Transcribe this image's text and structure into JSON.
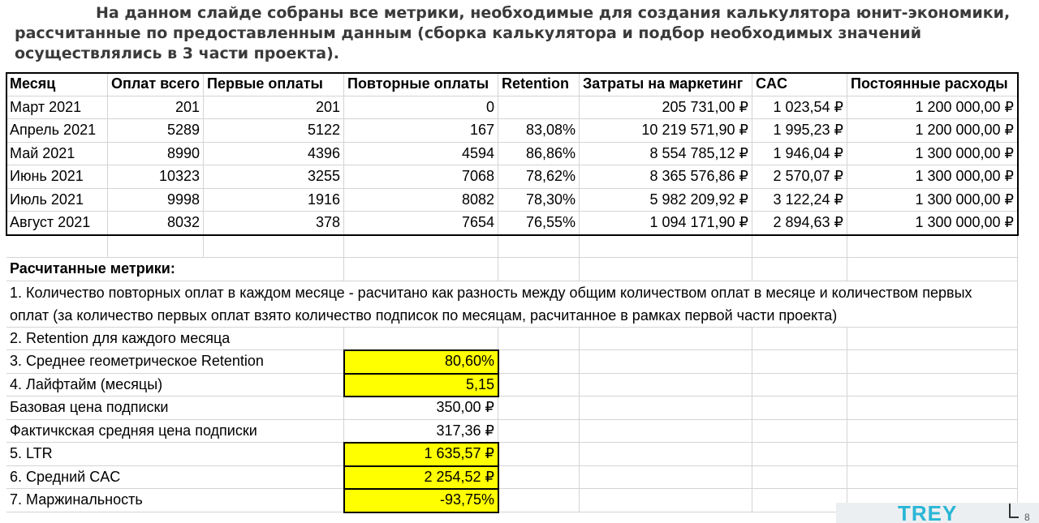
{
  "title": {
    "line1": "На данном слайде собраны все метрики, необходимые для создания калькулятора юнит-экономики,",
    "line2": "рассчитанные по предоставленным данным (сборка калькулятора и подбор необходимых значений",
    "line3": "осуществлялись в 3 части проекта)."
  },
  "table": {
    "headers": [
      "Месяц",
      "Оплат всего",
      "Первые оплаты",
      "Повторные оплаты",
      "Retention",
      "Затраты на маркетинг",
      "CAC",
      "Постоянные расходы"
    ],
    "rows": [
      [
        "Март 2021",
        "201",
        "201",
        "0",
        "",
        "205 731,00 ₽",
        "1 023,54 ₽",
        "1 200 000,00 ₽"
      ],
      [
        "Апрель 2021",
        "5289",
        "5122",
        "167",
        "83,08%",
        "10 219 571,90 ₽",
        "1 995,23 ₽",
        "1 200 000,00 ₽"
      ],
      [
        "Май 2021",
        "8990",
        "4396",
        "4594",
        "86,86%",
        "8 554 785,12 ₽",
        "1 946,04 ₽",
        "1 300 000,00 ₽"
      ],
      [
        "Июнь 2021",
        "10323",
        "3255",
        "7068",
        "78,62%",
        "8 365 576,86 ₽",
        "2 570,07 ₽",
        "1 300 000,00 ₽"
      ],
      [
        "Июль 2021",
        "9998",
        "1916",
        "8082",
        "78,30%",
        "5 982 209,92 ₽",
        "3 122,24 ₽",
        "1 300 000,00 ₽"
      ],
      [
        "Август 2021",
        "8032",
        "378",
        "7654",
        "76,55%",
        "1 094 171,90 ₽",
        "2 894,63 ₽",
        "1 300 000,00 ₽"
      ]
    ]
  },
  "metrics": {
    "heading": "Расчитанные метрики:",
    "item1": "1. Количество повторных оплат в каждом месяце - расчитано как разность между общим количеством оплат в месяце и количеством первых оплат (за количество первых оплат взято количество подписок по месяцам, расчитанное в рамках первой части проекта)",
    "item2": "2. Retention для каждого месяца",
    "rows": [
      {
        "label": "3. Среднее геометрическое Retention",
        "value": "80,60%",
        "highlight": true
      },
      {
        "label": "4. Лайфтайм (месяцы)",
        "value": "5,15",
        "highlight": true
      },
      {
        "label": "Базовая цена подписки",
        "value": "350,00 ₽",
        "highlight": false
      },
      {
        "label": "Фактичкская средняя цена подписки",
        "value": "317,36 ₽",
        "highlight": false
      },
      {
        "label": "5. LTR",
        "value": "1 635,57 ₽",
        "highlight": true
      },
      {
        "label": "6. Средний CAC",
        "value": "2 254,52 ₽",
        "highlight": true
      },
      {
        "label": "7. Маржинальность",
        "value": "-93,75%",
        "highlight": true
      }
    ]
  },
  "branding": {
    "logo": "TREY",
    "page_number": "8"
  },
  "colors": {
    "highlight": "#ffff00",
    "logo": "#29b6d6",
    "gridline": "#d4d4d4"
  }
}
